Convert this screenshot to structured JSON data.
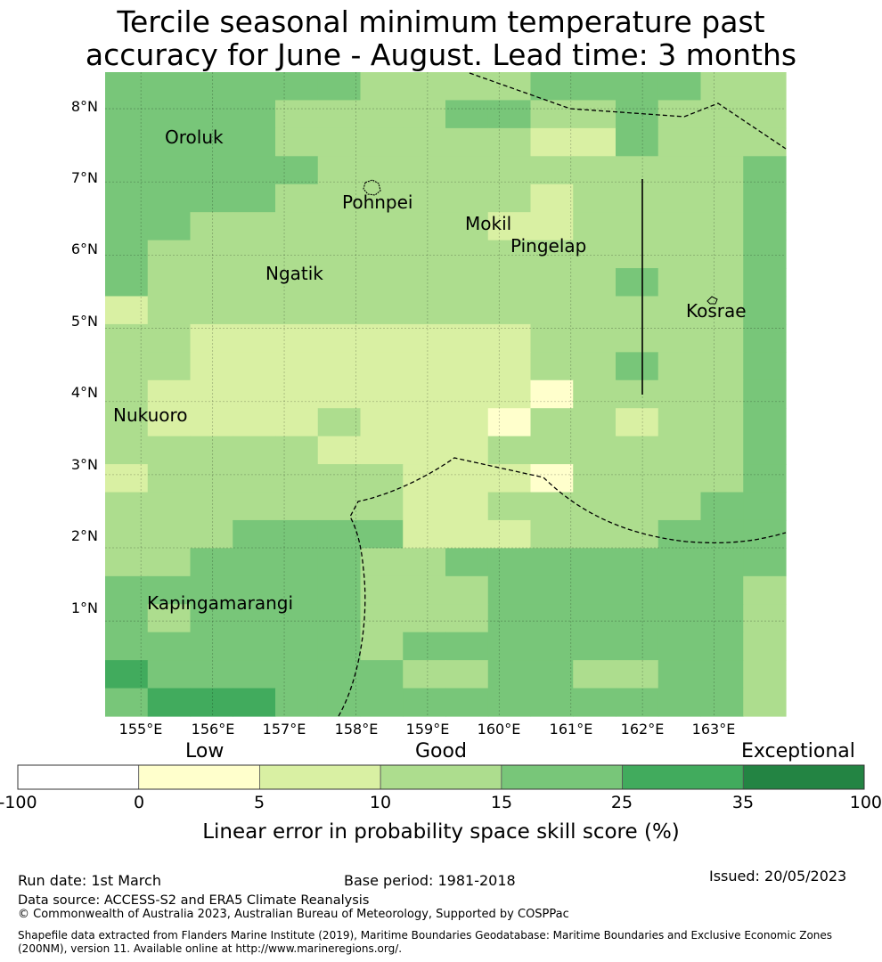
{
  "title": {
    "line1": "Tercile seasonal minimum temperature past",
    "line2": "accuracy for June - August. Lead time: 3 months"
  },
  "map": {
    "lat_ticks": [
      "8°N",
      "7°N",
      "6°N",
      "5°N",
      "4°N",
      "3°N",
      "2°N",
      "1°N"
    ],
    "lon_ticks": [
      "155°E",
      "156°E",
      "157°E",
      "158°E",
      "159°E",
      "160°E",
      "161°E",
      "162°E",
      "163°E"
    ],
    "lon_range": [
      154.5,
      164.0
    ],
    "lat_range": [
      -0.3,
      8.5
    ],
    "places": [
      {
        "name": "Oroluk",
        "lon": 155.8,
        "lat": 7.6
      },
      {
        "name": "Pohnpei",
        "lon": 158.2,
        "lat": 6.9
      },
      {
        "name": "Mokil",
        "lon": 159.8,
        "lat": 6.3
      },
      {
        "name": "Pingelap",
        "lon": 160.7,
        "lat": 6.2
      },
      {
        "name": "Ngatik",
        "lon": 157.4,
        "lat": 5.8
      },
      {
        "name": "Kosrae",
        "lon": 163.0,
        "lat": 5.3
      },
      {
        "name": "Nukuoro",
        "lon": 154.8,
        "lat": 3.8
      },
      {
        "name": "Kapingamarangi",
        "lon": 154.8,
        "lat": 1.1
      }
    ],
    "grid_levels": [
      "4444443333444433",
      "4444333344334333",
      "4444333333224333",
      "4444433333333334",
      "4444333333233334",
      "4433333332233334",
      "4333333333333334",
      "4333333333334334",
      "2333333333333334",
      "3322222222333334",
      "3322222222334334",
      "3222222222133334",
      "3222232221332334",
      "3333322223333334",
      "2333333222133334",
      "3333333223333344",
      "3334444222333444",
      "3344443344444444",
      "4444443334444443",
      "4344443334444443",
      "4444443444444443",
      "5444444334433443",
      "4555444444444443"
    ]
  },
  "legend": {
    "category_labels": {
      "low": "Low",
      "good": "Good",
      "exceptional": "Exceptional"
    },
    "ticks": [
      "-100",
      "0",
      "5",
      "10",
      "15",
      "25",
      "35",
      "100"
    ],
    "colors": [
      "#ffffff",
      "#ffffcc",
      "#d9f0a3",
      "#addd8e",
      "#78c679",
      "#41ab5d",
      "#238443"
    ],
    "label": "Linear error in probability space skill score (%)"
  },
  "footer": {
    "run_date": "Run date: 1st March",
    "base_period": "Base period: 1981-2018",
    "issued": "Issued: 20/05/2023",
    "data_source": "Data source: ACCESS-S2 and ERA5 Climate Reanalysis",
    "copyright": "© Commonwealth of Australia 2023, Australian Bureau of Meteorology, Supported by COSPPac",
    "shapefile": "Shapefile data extracted from Flanders Marine Institute (2019), Maritime Boundaries Geodatabase: Maritime Boundaries and Exclusive Economic Zones (200NM), version 11. Available online at http://www.marineregions.org/."
  }
}
